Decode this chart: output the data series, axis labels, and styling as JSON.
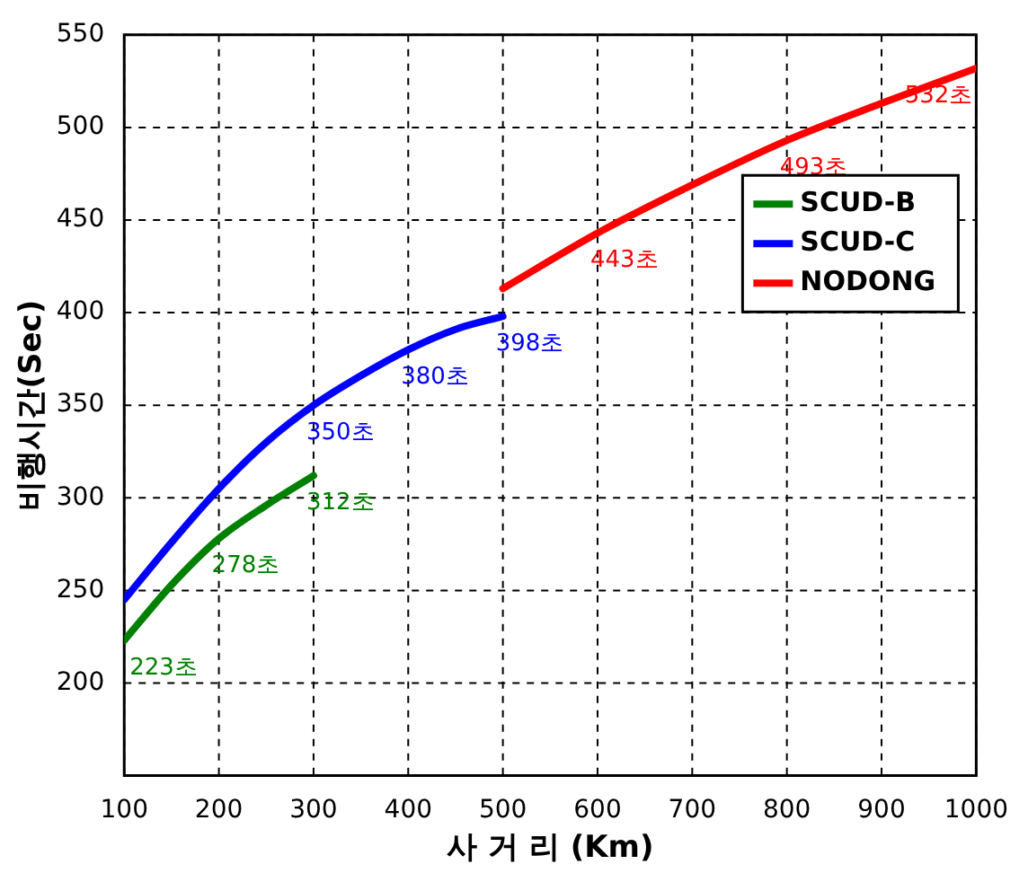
{
  "chart_data": {
    "type": "line",
    "xlabel": "사 거 리 (Km)",
    "ylabel": "비행시간(Sec)",
    "xlim": [
      100,
      1000
    ],
    "xticks": [
      100,
      200,
      300,
      400,
      500,
      600,
      700,
      800,
      900,
      1000
    ],
    "ylim": [
      150,
      550
    ],
    "yticks": [
      200,
      250,
      300,
      350,
      400,
      450,
      500,
      550
    ],
    "grid": true,
    "legend": "right",
    "marker": "none",
    "line_style": "solid",
    "series": [
      {
        "name": "SCUD-B",
        "color": "#008000",
        "x": [
          100,
          150,
          200,
          250,
          300
        ],
        "values": [
          223,
          253,
          278,
          296,
          312
        ]
      },
      {
        "name": "SCUD-C",
        "color": "#0000ff",
        "x": [
          100,
          150,
          200,
          250,
          300,
          350,
          400,
          450,
          500
        ],
        "values": [
          245,
          276,
          305,
          330,
          350,
          366,
          380,
          391,
          398
        ]
      },
      {
        "name": "NODONG",
        "color": "#ff0000",
        "x": [
          500,
          600,
          700,
          800,
          900,
          1000
        ],
        "values": [
          413,
          443,
          469,
          493,
          513,
          532
        ]
      }
    ],
    "annotations": [
      {
        "text": "223초",
        "x": 100,
        "y": 223
      },
      {
        "text": "278초",
        "x": 200,
        "y": 278
      },
      {
        "text": "312초",
        "x": 300,
        "y": 312
      },
      {
        "text": "350초",
        "x": 300,
        "y": 350
      },
      {
        "text": "380초",
        "x": 400,
        "y": 380
      },
      {
        "text": "398초",
        "x": 500,
        "y": 398
      },
      {
        "text": "443초",
        "x": 600,
        "y": 443
      },
      {
        "text": "493초",
        "x": 800,
        "y": 493
      },
      {
        "text": "532초",
        "x": 1000,
        "y": 532
      }
    ]
  }
}
